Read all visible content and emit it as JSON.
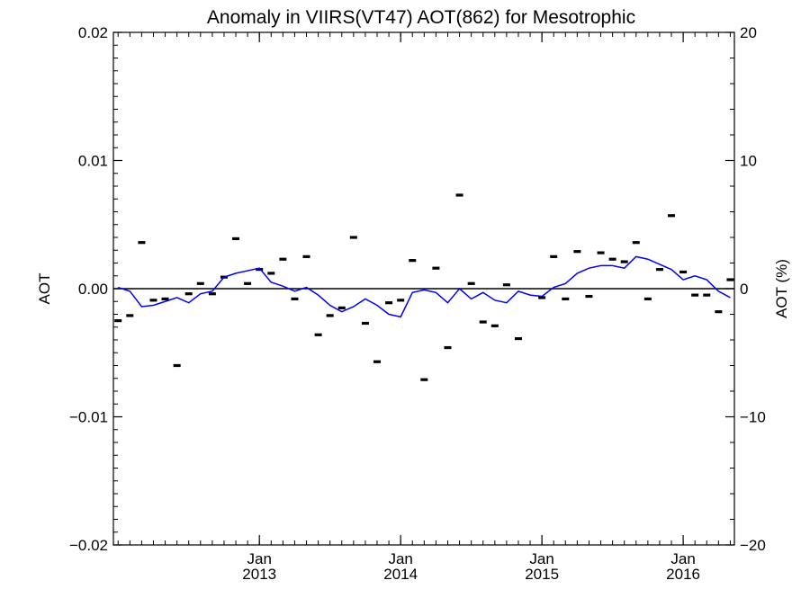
{
  "chart_data": {
    "type": "scatter",
    "title": "Anomaly in VIIRS(VT47) AOT(862) for Mesotrophic",
    "ylabel": "AOT",
    "y2label": "AOT (%)",
    "xlim": [
      "2012-01",
      "2016-05"
    ],
    "ylim": [
      -0.02,
      0.02
    ],
    "y2lim": [
      -20,
      20
    ],
    "yticks": [
      0.02,
      0.01,
      0.0,
      -0.01,
      -0.02
    ],
    "ytick_labels": [
      "0.02",
      "0.01",
      "0.00",
      "−0.01",
      "−0.02"
    ],
    "y2ticks": [
      20,
      10,
      0,
      -10,
      -20
    ],
    "y2tick_labels": [
      "20",
      "10",
      "0",
      "−10",
      "−20"
    ],
    "xticks": [
      {
        "x": "2013-01",
        "line1": "Jan",
        "line2": "2013"
      },
      {
        "x": "2014-01",
        "line1": "Jan",
        "line2": "2014"
      },
      {
        "x": "2015-01",
        "line1": "Jan",
        "line2": "2015"
      },
      {
        "x": "2016-01",
        "line1": "Jan",
        "line2": "2016"
      }
    ],
    "reference_line": 0,
    "grid": false,
    "colors": {
      "points": "#000000",
      "smooth": "#0000ff",
      "axis": "#000000"
    },
    "series": [
      {
        "style": "dash-marker",
        "x": [
          "2012-01",
          "2012-02",
          "2012-03",
          "2012-04",
          "2012-05",
          "2012-06",
          "2012-07",
          "2012-08",
          "2012-09",
          "2012-10",
          "2012-11",
          "2012-12",
          "2013-01",
          "2013-02",
          "2013-03",
          "2013-04",
          "2013-05",
          "2013-06",
          "2013-07",
          "2013-08",
          "2013-09",
          "2013-10",
          "2013-11",
          "2013-12",
          "2014-01",
          "2014-02",
          "2014-03",
          "2014-04",
          "2014-05",
          "2014-06",
          "2014-07",
          "2014-08",
          "2014-09",
          "2014-10",
          "2014-11",
          "2014-12",
          "2015-01",
          "2015-02",
          "2015-03",
          "2015-04",
          "2015-05",
          "2015-06",
          "2015-07",
          "2015-08",
          "2015-09",
          "2015-10",
          "2015-11",
          "2015-12",
          "2016-01",
          "2016-02",
          "2016-03",
          "2016-04",
          "2016-05"
        ],
        "values": [
          -0.0025,
          -0.0021,
          0.0036,
          -0.0009,
          -0.0008,
          -0.006,
          -0.0004,
          0.0004,
          -0.0004,
          0.0009,
          0.0039,
          0.0004,
          0.0015,
          0.0012,
          0.0023,
          -0.0008,
          0.0025,
          -0.0036,
          -0.0021,
          -0.0015,
          0.004,
          -0.0027,
          -0.0057,
          -0.0011,
          -0.0009,
          0.0022,
          -0.0071,
          0.0016,
          -0.0046,
          0.0073,
          0.0004,
          -0.0026,
          -0.0029,
          0.0003,
          -0.0039,
          null,
          -0.0007,
          0.0025,
          -0.0008,
          0.0029,
          -0.0006,
          0.0028,
          0.0023,
          0.0021,
          0.0036,
          -0.0008,
          0.0015,
          0.0057,
          0.0013,
          -0.0005,
          -0.0005,
          -0.0018,
          0.0007
        ]
      },
      {
        "style": "line",
        "x": [
          "2012-01",
          "2012-02",
          "2012-03",
          "2012-04",
          "2012-05",
          "2012-06",
          "2012-07",
          "2012-08",
          "2012-09",
          "2012-10",
          "2012-11",
          "2012-12",
          "2013-01",
          "2013-02",
          "2013-03",
          "2013-04",
          "2013-05",
          "2013-06",
          "2013-07",
          "2013-08",
          "2013-09",
          "2013-10",
          "2013-11",
          "2013-12",
          "2014-01",
          "2014-02",
          "2014-03",
          "2014-04",
          "2014-05",
          "2014-06",
          "2014-07",
          "2014-08",
          "2014-09",
          "2014-10",
          "2014-11",
          "2014-12",
          "2015-01",
          "2015-02",
          "2015-03",
          "2015-04",
          "2015-05",
          "2015-06",
          "2015-07",
          "2015-08",
          "2015-09",
          "2015-10",
          "2015-11",
          "2015-12",
          "2016-01",
          "2016-02",
          "2016-03",
          "2016-04",
          "2016-05"
        ],
        "values": [
          0.0001,
          -0.0002,
          -0.0014,
          -0.0013,
          -0.001,
          -0.0007,
          -0.0011,
          -0.0004,
          -0.0002,
          0.0009,
          0.0012,
          0.0014,
          0.0016,
          0.0005,
          0.0002,
          -0.0002,
          0.0001,
          -0.0005,
          -0.0013,
          -0.0018,
          -0.0014,
          -0.0008,
          -0.0013,
          -0.002,
          -0.0022,
          -0.0003,
          -0.0001,
          -0.0003,
          -0.0011,
          0.0,
          -0.0008,
          -0.0003,
          -0.0009,
          -0.0011,
          -0.0002,
          -0.0005,
          -0.0006,
          0.0001,
          0.0004,
          0.0012,
          0.0016,
          0.0018,
          0.0018,
          0.0016,
          0.0025,
          0.0023,
          0.0019,
          0.0015,
          0.0007,
          0.001,
          0.0007,
          -0.0002,
          -0.0007
        ]
      }
    ]
  }
}
